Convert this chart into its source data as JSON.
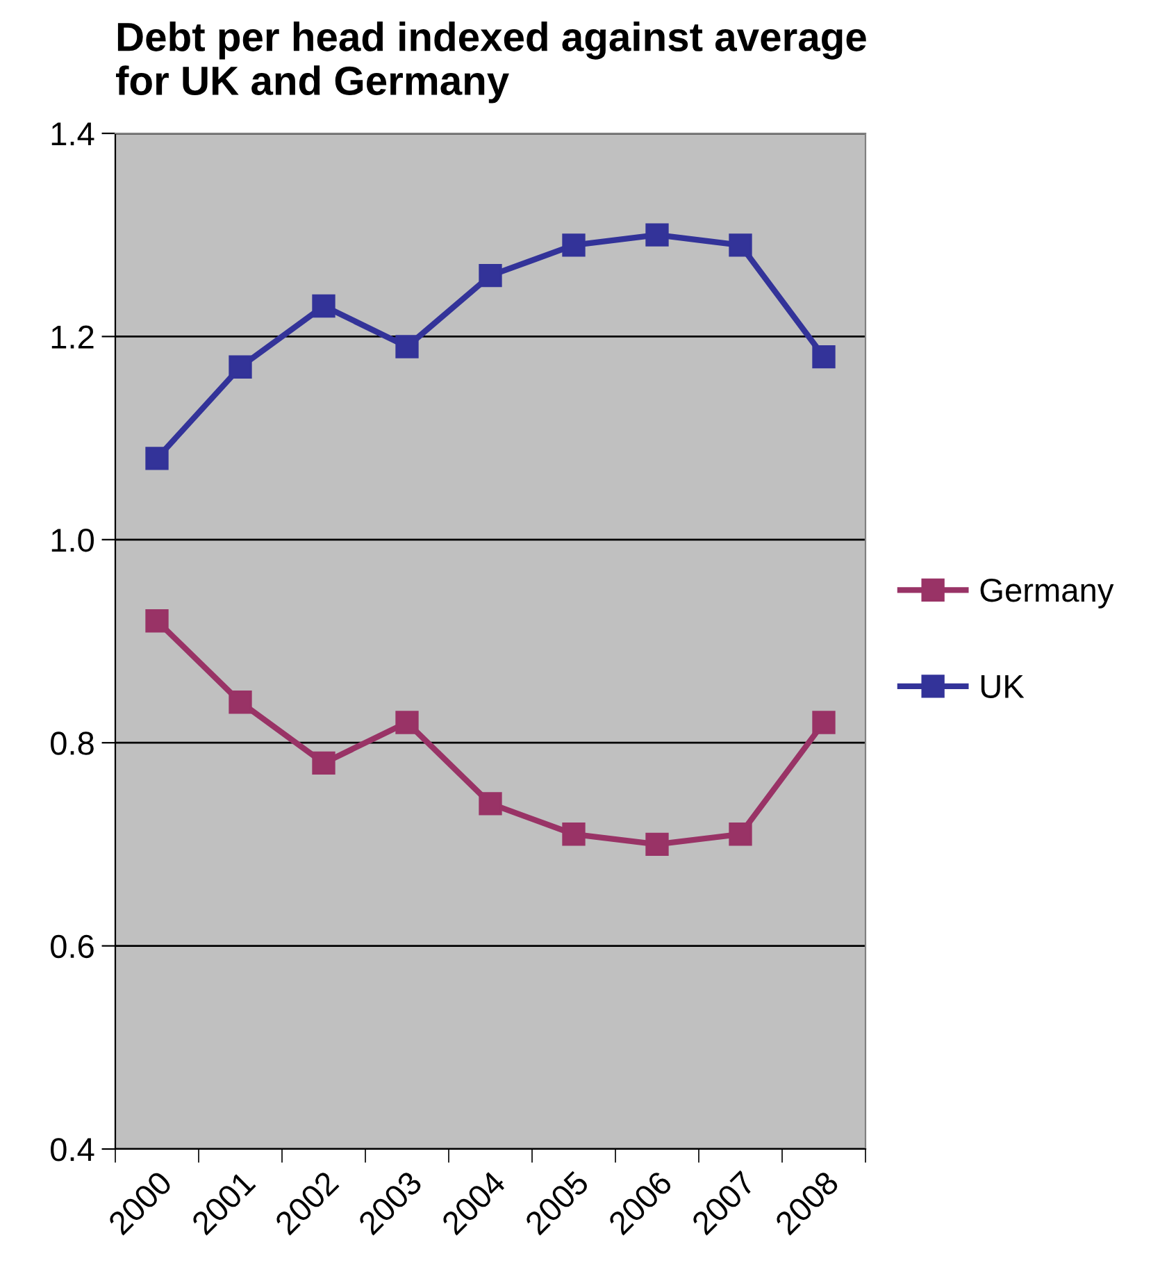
{
  "chart_data": {
    "type": "line",
    "title": "Debt per head indexed against average\nfor UK and Germany",
    "categories": [
      "2000",
      "2001",
      "2002",
      "2003",
      "2004",
      "2005",
      "2006",
      "2007",
      "2008"
    ],
    "series": [
      {
        "name": "Germany",
        "color": "#993366",
        "values": [
          0.92,
          0.84,
          0.78,
          0.82,
          0.74,
          0.71,
          0.7,
          0.71,
          0.82
        ]
      },
      {
        "name": "UK",
        "color": "#333399",
        "values": [
          1.08,
          1.17,
          1.23,
          1.19,
          1.26,
          1.29,
          1.3,
          1.29,
          1.18
        ]
      }
    ],
    "ylim": [
      0.4,
      1.4
    ],
    "yticks": [
      {
        "value": 0.4,
        "label": "0.4"
      },
      {
        "value": 0.6,
        "label": "0.6"
      },
      {
        "value": 0.8,
        "label": "0.8"
      },
      {
        "value": 1.0,
        "label": "1.0"
      },
      {
        "value": 1.2,
        "label": "1.2"
      },
      {
        "value": 1.4,
        "label": "1.4"
      }
    ],
    "grid": "y",
    "legend": "right",
    "marker": "square",
    "line_style": "solid"
  }
}
